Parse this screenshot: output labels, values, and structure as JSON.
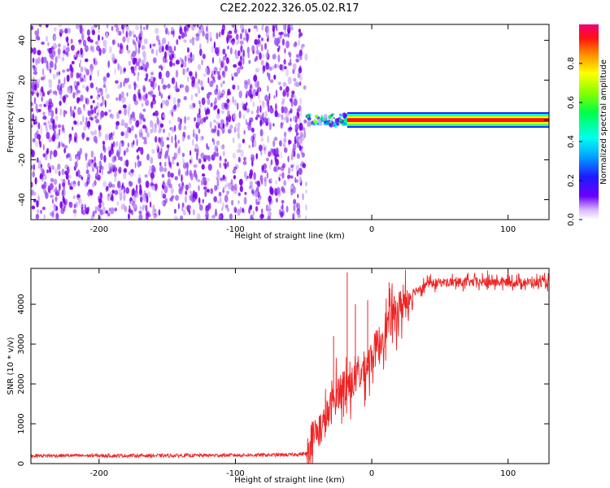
{
  "title": "C2E2.2022.326.05.02.R17",
  "colors": {
    "snr_line": "#ee2222",
    "scatter_dark": "#7a00ee",
    "scatter_light": "#c9a8f5"
  },
  "chart_data": [
    {
      "type": "heatmap",
      "xlabel": "Height of straight line (km)",
      "ylabel": "Frequency (Hz)",
      "xlim": [
        -250,
        130
      ],
      "ylim": [
        -50,
        48
      ],
      "x_ticks": [
        "-200",
        "-100",
        "0",
        "100"
      ],
      "y_ticks": [
        "-40",
        "-20",
        "0",
        "20",
        "40"
      ],
      "noise_region_x": [
        -250,
        -48
      ],
      "signal_band": {
        "x": [
          -48,
          130
        ],
        "frequency": 0,
        "halfwidth": 3
      },
      "colorbar": {
        "label": "Normalized spectral amplitude",
        "range": [
          0,
          1
        ],
        "ticks": [
          "0.0",
          "0.2",
          "0.4",
          "0.6",
          "0.8"
        ],
        "colormap": "rainbow"
      }
    },
    {
      "type": "line",
      "xlabel": "Height of straight line (km)",
      "ylabel": "SNR (10 * v/v)",
      "xlim": [
        -250,
        130
      ],
      "ylim": [
        0,
        4900
      ],
      "x_ticks": [
        "-200",
        "-100",
        "0",
        "100"
      ],
      "y_ticks": [
        "0",
        "1000",
        "2000",
        "3000",
        "4000"
      ],
      "series": [
        {
          "x": [
            -250,
            -150,
            -60,
            -48,
            -45,
            -40,
            -35,
            -30,
            -25,
            -20,
            -15,
            -10,
            -5,
            0,
            5,
            10,
            15,
            20,
            25,
            30,
            35,
            40,
            50,
            60,
            80,
            100,
            130
          ],
          "values": [
            200,
            200,
            220,
            250,
            600,
            800,
            1000,
            1400,
            1800,
            2000,
            2000,
            2200,
            2400,
            2700,
            3000,
            3400,
            3700,
            3900,
            4100,
            4300,
            4400,
            4500,
            4550,
            4550,
            4550,
            4550,
            4550
          ],
          "spikes": [
            {
              "x": -18,
              "y": 4800
            },
            {
              "x": -28,
              "y": 3200
            },
            {
              "x": -12,
              "y": 4000
            },
            {
              "x": -3,
              "y": 4100
            },
            {
              "x": 85,
              "y": 4850
            }
          ]
        }
      ]
    }
  ]
}
